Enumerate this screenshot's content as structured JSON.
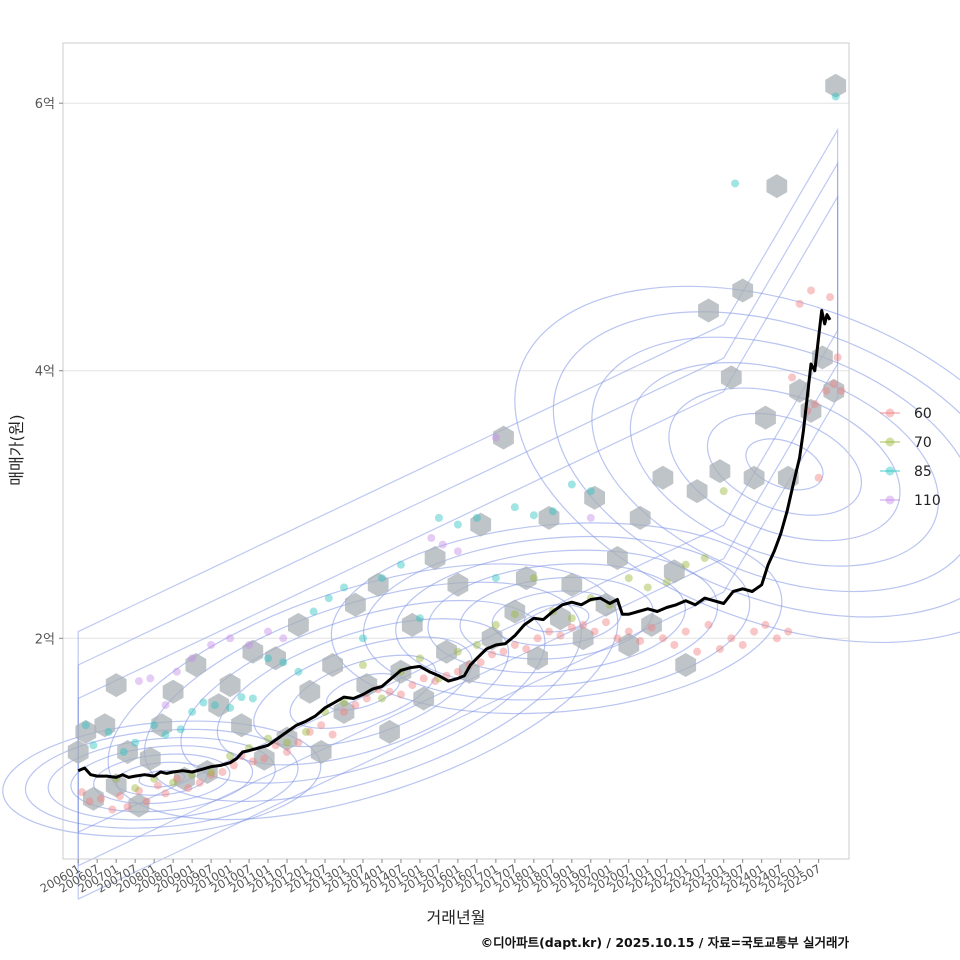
{
  "chart_data": {
    "type": "scatter",
    "title": "",
    "xlabel": "거래년월",
    "ylabel": "매매가(원)",
    "caption": "©디아파트(dapt.kr) / 2025.10.15 / 자료=국토교통부 실거래가",
    "x_range": [
      2005.6,
      2026.3
    ],
    "y_range_eok": [
      0.35,
      6.45
    ],
    "y_ticks": [
      {
        "value": 2,
        "label": "2억"
      },
      {
        "value": 4,
        "label": "4억"
      },
      {
        "value": 6,
        "label": "6억"
      }
    ],
    "x_ticks": [
      "200601",
      "200607",
      "200701",
      "200707",
      "200801",
      "200807",
      "200901",
      "200907",
      "201001",
      "201007",
      "201101",
      "201107",
      "201201",
      "201207",
      "201301",
      "201307",
      "201401",
      "201407",
      "201501",
      "201507",
      "201601",
      "201607",
      "201701",
      "201707",
      "201801",
      "201807",
      "201901",
      "201907",
      "202001",
      "202007",
      "202101",
      "202107",
      "202201",
      "202207",
      "202301",
      "202307",
      "202401",
      "202407",
      "202501",
      "202507"
    ],
    "legend": [
      {
        "label": "60",
        "color": "#f08080"
      },
      {
        "label": "70",
        "color": "#9ab83a"
      },
      {
        "label": "85",
        "color": "#2cc4c4"
      },
      {
        "label": "110",
        "color": "#c58ee8"
      }
    ],
    "colors": {
      "hex": "#aab0b5",
      "contour": "#7f93e6",
      "trend": "#000000",
      "grid": "#e3e3e3",
      "panel_border": "#cccccc"
    },
    "trend_line": [
      [
        2006.0,
        1.01
      ],
      [
        2006.17,
        1.03
      ],
      [
        2006.33,
        0.98
      ],
      [
        2006.5,
        0.97
      ],
      [
        2006.75,
        0.97
      ],
      [
        2007.0,
        0.96
      ],
      [
        2007.17,
        0.98
      ],
      [
        2007.33,
        0.96
      ],
      [
        2007.5,
        0.97
      ],
      [
        2007.75,
        0.98
      ],
      [
        2008.0,
        0.97
      ],
      [
        2008.17,
        1.0
      ],
      [
        2008.33,
        0.99
      ],
      [
        2008.5,
        1.0
      ],
      [
        2008.75,
        1.01
      ],
      [
        2009.0,
        1.0
      ],
      [
        2009.25,
        1.02
      ],
      [
        2009.5,
        1.04
      ],
      [
        2009.75,
        1.05
      ],
      [
        2010.0,
        1.07
      ],
      [
        2010.17,
        1.1
      ],
      [
        2010.33,
        1.15
      ],
      [
        2010.5,
        1.16
      ],
      [
        2010.75,
        1.18
      ],
      [
        2011.0,
        1.2
      ],
      [
        2011.25,
        1.25
      ],
      [
        2011.5,
        1.3
      ],
      [
        2011.75,
        1.35
      ],
      [
        2012.0,
        1.38
      ],
      [
        2012.25,
        1.42
      ],
      [
        2012.5,
        1.48
      ],
      [
        2012.75,
        1.52
      ],
      [
        2013.0,
        1.56
      ],
      [
        2013.25,
        1.55
      ],
      [
        2013.5,
        1.58
      ],
      [
        2013.75,
        1.62
      ],
      [
        2014.0,
        1.64
      ],
      [
        2014.25,
        1.7
      ],
      [
        2014.5,
        1.76
      ],
      [
        2014.75,
        1.78
      ],
      [
        2015.0,
        1.79
      ],
      [
        2015.25,
        1.75
      ],
      [
        2015.5,
        1.72
      ],
      [
        2015.75,
        1.68
      ],
      [
        2016.0,
        1.7
      ],
      [
        2016.17,
        1.72
      ],
      [
        2016.33,
        1.8
      ],
      [
        2016.5,
        1.85
      ],
      [
        2016.75,
        1.92
      ],
      [
        2017.0,
        1.95
      ],
      [
        2017.25,
        1.96
      ],
      [
        2017.5,
        2.02
      ],
      [
        2017.75,
        2.1
      ],
      [
        2018.0,
        2.15
      ],
      [
        2018.25,
        2.14
      ],
      [
        2018.5,
        2.2
      ],
      [
        2018.75,
        2.25
      ],
      [
        2019.0,
        2.27
      ],
      [
        2019.25,
        2.25
      ],
      [
        2019.5,
        2.29
      ],
      [
        2019.75,
        2.3
      ],
      [
        2020.0,
        2.26
      ],
      [
        2020.2,
        2.29
      ],
      [
        2020.33,
        2.18
      ],
      [
        2020.5,
        2.18
      ],
      [
        2020.75,
        2.2
      ],
      [
        2021.0,
        2.22
      ],
      [
        2021.25,
        2.2
      ],
      [
        2021.5,
        2.23
      ],
      [
        2021.75,
        2.25
      ],
      [
        2022.0,
        2.28
      ],
      [
        2022.25,
        2.25
      ],
      [
        2022.5,
        2.3
      ],
      [
        2022.75,
        2.28
      ],
      [
        2023.0,
        2.26
      ],
      [
        2023.25,
        2.35
      ],
      [
        2023.5,
        2.37
      ],
      [
        2023.75,
        2.35
      ],
      [
        2024.0,
        2.4
      ],
      [
        2024.17,
        2.55
      ],
      [
        2024.33,
        2.65
      ],
      [
        2024.5,
        2.78
      ],
      [
        2024.67,
        2.95
      ],
      [
        2024.83,
        3.15
      ],
      [
        2025.0,
        3.35
      ],
      [
        2025.1,
        3.55
      ],
      [
        2025.2,
        3.8
      ],
      [
        2025.3,
        4.05
      ],
      [
        2025.4,
        4.0
      ],
      [
        2025.5,
        4.25
      ],
      [
        2025.58,
        4.45
      ],
      [
        2025.66,
        4.35
      ],
      [
        2025.72,
        4.42
      ],
      [
        2025.8,
        4.38
      ]
    ],
    "series": [
      {
        "name": "60",
        "points": [
          [
            2006.1,
            0.85
          ],
          [
            2006.3,
            0.78
          ],
          [
            2006.6,
            0.8
          ],
          [
            2006.9,
            0.72
          ],
          [
            2007.1,
            0.82
          ],
          [
            2007.3,
            0.74
          ],
          [
            2007.6,
            0.86
          ],
          [
            2007.8,
            0.78
          ],
          [
            2008.1,
            0.9
          ],
          [
            2008.3,
            0.84
          ],
          [
            2008.6,
            0.95
          ],
          [
            2008.9,
            0.88
          ],
          [
            2009.2,
            0.92
          ],
          [
            2009.5,
            0.98
          ],
          [
            2009.8,
            1.0
          ],
          [
            2010.1,
            1.05
          ],
          [
            2010.3,
            1.12
          ],
          [
            2010.6,
            1.08
          ],
          [
            2010.9,
            1.1
          ],
          [
            2011.2,
            1.2
          ],
          [
            2011.5,
            1.15
          ],
          [
            2011.8,
            1.22
          ],
          [
            2012.1,
            1.3
          ],
          [
            2012.4,
            1.35
          ],
          [
            2012.7,
            1.28
          ],
          [
            2013.0,
            1.45
          ],
          [
            2013.3,
            1.5
          ],
          [
            2013.6,
            1.55
          ],
          [
            2013.9,
            1.62
          ],
          [
            2014.2,
            1.6
          ],
          [
            2014.5,
            1.58
          ],
          [
            2014.8,
            1.65
          ],
          [
            2015.1,
            1.7
          ],
          [
            2015.4,
            1.68
          ],
          [
            2015.7,
            1.72
          ],
          [
            2016.0,
            1.75
          ],
          [
            2016.3,
            1.8
          ],
          [
            2016.6,
            1.82
          ],
          [
            2016.9,
            1.88
          ],
          [
            2017.2,
            1.9
          ],
          [
            2017.5,
            1.95
          ],
          [
            2017.8,
            1.92
          ],
          [
            2018.1,
            2.0
          ],
          [
            2018.4,
            2.05
          ],
          [
            2018.7,
            2.02
          ],
          [
            2019.0,
            2.08
          ],
          [
            2019.3,
            2.1
          ],
          [
            2019.6,
            2.05
          ],
          [
            2019.9,
            2.12
          ],
          [
            2020.2,
            2.0
          ],
          [
            2020.5,
            2.05
          ],
          [
            2020.8,
            1.98
          ],
          [
            2021.1,
            2.08
          ],
          [
            2021.4,
            2.0
          ],
          [
            2021.7,
            1.95
          ],
          [
            2022.0,
            2.05
          ],
          [
            2022.3,
            1.9
          ],
          [
            2022.6,
            2.1
          ],
          [
            2022.9,
            1.92
          ],
          [
            2023.2,
            2.0
          ],
          [
            2023.5,
            1.95
          ],
          [
            2023.8,
            2.05
          ],
          [
            2024.1,
            2.1
          ],
          [
            2024.4,
            2.0
          ],
          [
            2024.7,
            2.05
          ],
          [
            2024.8,
            3.95
          ],
          [
            2025.0,
            4.5
          ],
          [
            2025.3,
            4.6
          ],
          [
            2025.5,
            3.2
          ],
          [
            2025.8,
            4.55
          ],
          [
            2026.0,
            4.1
          ],
          [
            2025.2,
            3.7
          ],
          [
            2025.7,
            3.85
          ],
          [
            2025.9,
            3.9
          ],
          [
            2026.1,
            3.85
          ],
          [
            2025.4,
            3.75
          ]
        ]
      },
      {
        "name": "70",
        "points": [
          [
            2007.0,
            0.95
          ],
          [
            2007.5,
            0.88
          ],
          [
            2008.0,
            0.95
          ],
          [
            2008.5,
            0.92
          ],
          [
            2009.0,
            0.98
          ],
          [
            2009.5,
            1.0
          ],
          [
            2010.0,
            1.12
          ],
          [
            2010.5,
            1.18
          ],
          [
            2011.0,
            1.25
          ],
          [
            2011.5,
            1.22
          ],
          [
            2012.0,
            1.3
          ],
          [
            2012.5,
            1.45
          ],
          [
            2013.0,
            1.52
          ],
          [
            2013.5,
            1.8
          ],
          [
            2014.0,
            1.55
          ],
          [
            2014.5,
            1.75
          ],
          [
            2015.0,
            1.85
          ],
          [
            2015.5,
            1.7
          ],
          [
            2016.0,
            1.9
          ],
          [
            2016.5,
            1.95
          ],
          [
            2017.0,
            2.1
          ],
          [
            2017.5,
            2.18
          ],
          [
            2018.0,
            2.45
          ],
          [
            2018.5,
            2.2
          ],
          [
            2019.0,
            2.15
          ],
          [
            2019.5,
            2.3
          ],
          [
            2020.0,
            2.25
          ],
          [
            2020.5,
            2.45
          ],
          [
            2021.0,
            2.38
          ],
          [
            2021.5,
            2.42
          ],
          [
            2022.0,
            2.55
          ],
          [
            2022.5,
            2.6
          ],
          [
            2023.0,
            3.1
          ]
        ]
      },
      {
        "name": "85",
        "points": [
          [
            2006.2,
            1.35
          ],
          [
            2006.4,
            1.2
          ],
          [
            2006.8,
            1.3
          ],
          [
            2007.2,
            1.15
          ],
          [
            2007.5,
            1.22
          ],
          [
            2008.0,
            1.35
          ],
          [
            2008.3,
            1.28
          ],
          [
            2008.7,
            1.32
          ],
          [
            2009.0,
            1.45
          ],
          [
            2009.3,
            1.52
          ],
          [
            2009.6,
            1.5
          ],
          [
            2010.0,
            1.48
          ],
          [
            2010.3,
            1.56
          ],
          [
            2010.6,
            1.55
          ],
          [
            2011.0,
            1.85
          ],
          [
            2011.4,
            1.82
          ],
          [
            2011.8,
            1.75
          ],
          [
            2012.2,
            2.2
          ],
          [
            2012.6,
            2.3
          ],
          [
            2013.0,
            2.38
          ],
          [
            2013.5,
            2.0
          ],
          [
            2014.0,
            2.45
          ],
          [
            2014.5,
            2.55
          ],
          [
            2015.0,
            2.15
          ],
          [
            2015.5,
            2.9
          ],
          [
            2016.0,
            2.85
          ],
          [
            2016.5,
            2.9
          ],
          [
            2017.0,
            2.45
          ],
          [
            2017.5,
            2.98
          ],
          [
            2018.0,
            2.92
          ],
          [
            2018.5,
            2.95
          ],
          [
            2019.0,
            3.15
          ],
          [
            2019.5,
            3.1
          ],
          [
            2023.3,
            5.4
          ],
          [
            2025.95,
            6.05
          ]
        ]
      },
      {
        "name": "110",
        "points": [
          [
            2007.6,
            1.68
          ],
          [
            2007.9,
            1.7
          ],
          [
            2008.3,
            1.5
          ],
          [
            2008.6,
            1.75
          ],
          [
            2009.0,
            1.85
          ],
          [
            2009.5,
            1.95
          ],
          [
            2010.0,
            2.0
          ],
          [
            2010.5,
            1.95
          ],
          [
            2011.0,
            2.05
          ],
          [
            2011.4,
            2.0
          ],
          [
            2015.3,
            2.75
          ],
          [
            2015.6,
            2.7
          ],
          [
            2016.0,
            2.65
          ],
          [
            2017.0,
            3.5
          ],
          [
            2019.5,
            2.9
          ]
        ]
      }
    ],
    "hexbins": [
      [
        2006.0,
        1.15
      ],
      [
        2006.2,
        1.3
      ],
      [
        2006.4,
        0.8
      ],
      [
        2006.7,
        1.35
      ],
      [
        2007.0,
        1.65
      ],
      [
        2007.0,
        0.9
      ],
      [
        2007.3,
        1.15
      ],
      [
        2007.6,
        0.75
      ],
      [
        2007.9,
        1.1
      ],
      [
        2008.2,
        1.35
      ],
      [
        2008.5,
        1.6
      ],
      [
        2008.8,
        0.95
      ],
      [
        2009.1,
        1.8
      ],
      [
        2009.4,
        1.0
      ],
      [
        2009.7,
        1.5
      ],
      [
        2010.0,
        1.65
      ],
      [
        2010.3,
        1.35
      ],
      [
        2010.6,
        1.9
      ],
      [
        2010.9,
        1.1
      ],
      [
        2011.2,
        1.85
      ],
      [
        2011.5,
        1.25
      ],
      [
        2011.8,
        2.1
      ],
      [
        2012.1,
        1.6
      ],
      [
        2012.4,
        1.15
      ],
      [
        2012.7,
        1.8
      ],
      [
        2013.0,
        1.45
      ],
      [
        2013.3,
        2.25
      ],
      [
        2013.6,
        1.65
      ],
      [
        2013.9,
        2.4
      ],
      [
        2014.2,
        1.3
      ],
      [
        2014.5,
        1.75
      ],
      [
        2014.8,
        2.1
      ],
      [
        2015.1,
        1.55
      ],
      [
        2015.4,
        2.6
      ],
      [
        2015.7,
        1.9
      ],
      [
        2016.0,
        2.4
      ],
      [
        2016.3,
        1.75
      ],
      [
        2016.6,
        2.85
      ],
      [
        2016.9,
        2.0
      ],
      [
        2017.2,
        3.5
      ],
      [
        2017.5,
        2.2
      ],
      [
        2017.8,
        2.45
      ],
      [
        2018.1,
        1.85
      ],
      [
        2018.4,
        2.9
      ],
      [
        2018.7,
        2.15
      ],
      [
        2019.0,
        2.4
      ],
      [
        2019.3,
        2.0
      ],
      [
        2019.6,
        3.05
      ],
      [
        2019.9,
        2.25
      ],
      [
        2020.2,
        2.6
      ],
      [
        2020.5,
        1.95
      ],
      [
        2020.8,
        2.9
      ],
      [
        2021.1,
        2.1
      ],
      [
        2021.4,
        3.2
      ],
      [
        2021.7,
        2.5
      ],
      [
        2022.0,
        1.8
      ],
      [
        2022.3,
        3.1
      ],
      [
        2022.6,
        4.45
      ],
      [
        2022.9,
        3.25
      ],
      [
        2023.2,
        3.95
      ],
      [
        2023.5,
        4.6
      ],
      [
        2023.8,
        3.2
      ],
      [
        2024.1,
        3.65
      ],
      [
        2024.4,
        5.38
      ],
      [
        2024.7,
        3.2
      ],
      [
        2025.0,
        3.85
      ],
      [
        2025.3,
        3.7
      ],
      [
        2025.6,
        4.1
      ],
      [
        2025.9,
        3.85
      ],
      [
        2025.95,
        6.13
      ]
    ]
  }
}
